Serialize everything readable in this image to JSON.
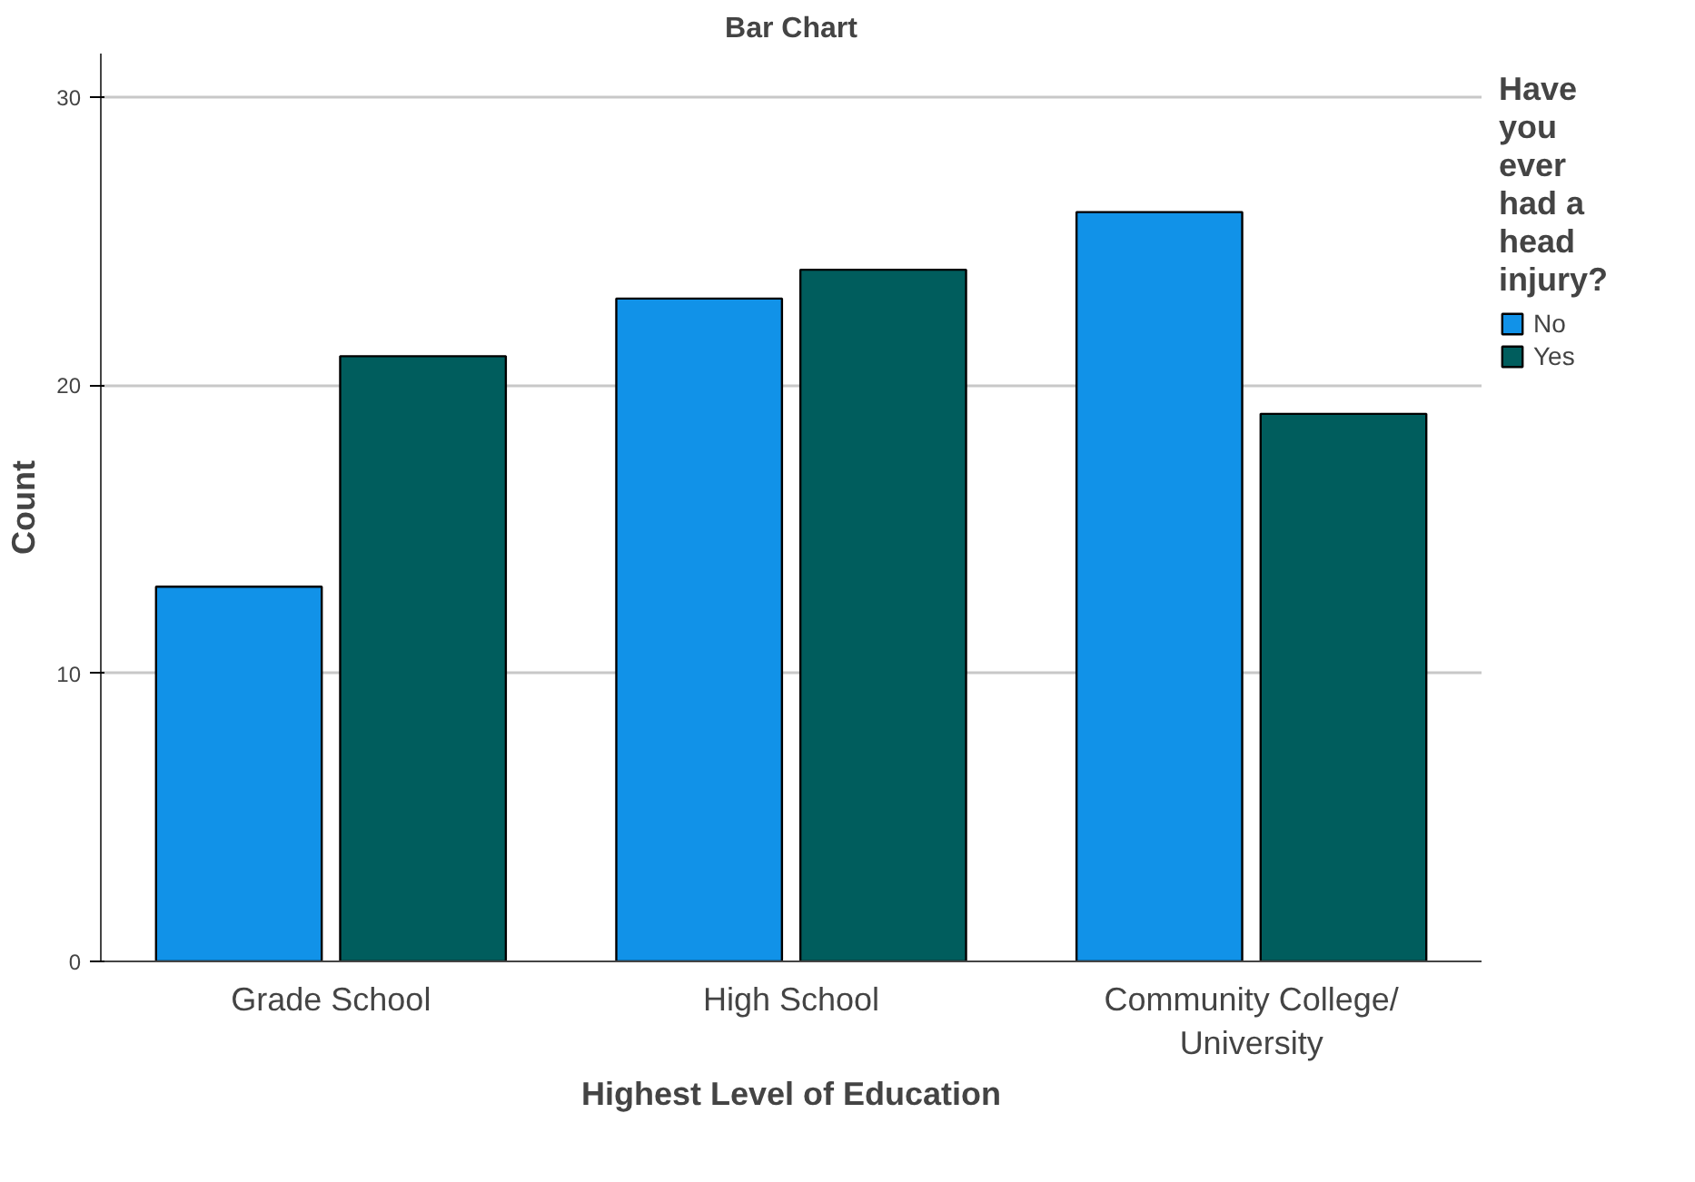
{
  "chart_data": {
    "type": "bar",
    "title": "Bar Chart",
    "xlabel": "Highest Level of Education",
    "ylabel": "Count",
    "legend_title": "Have you ever had a head injury?",
    "categories": [
      "Grade School",
      "High School",
      "Community College/ University"
    ],
    "series": [
      {
        "name": "No",
        "color": "#1192e8",
        "values": [
          13,
          23,
          26
        ]
      },
      {
        "name": "Yes",
        "color": "#005d5d",
        "values": [
          21,
          24,
          19
        ]
      }
    ],
    "ylim": [
      0,
      31.5
    ],
    "yticks": [
      0,
      10,
      20,
      30
    ],
    "grid": "y",
    "legend": "top right"
  }
}
